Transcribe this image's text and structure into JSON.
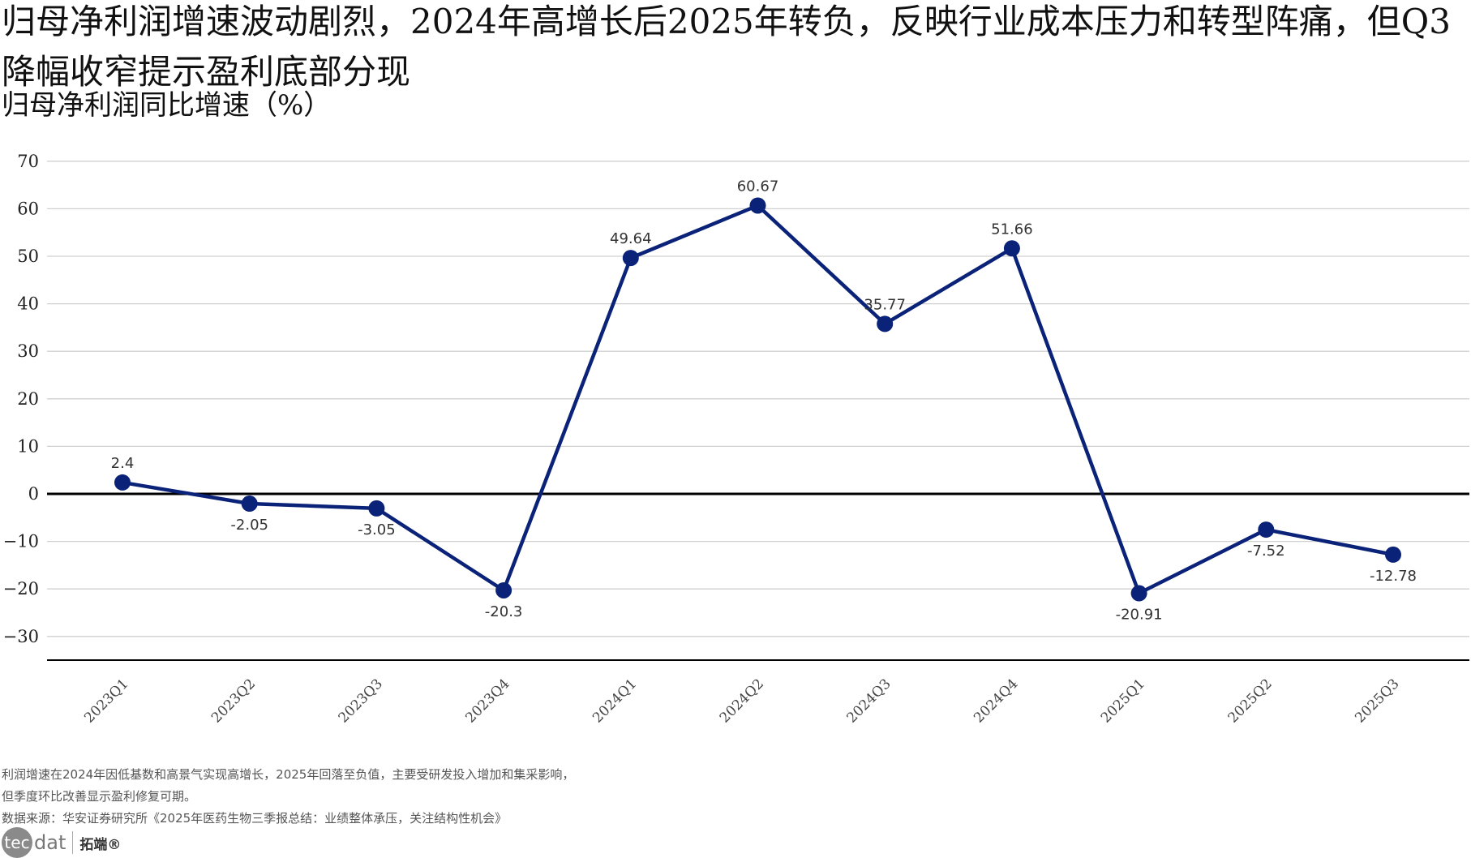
{
  "title": "归母净利润增速波动剧烈，2024年高增长后2025年转负，反映行业成本压力和转型阵痛，但Q3降幅收窄提示盈利底部分现",
  "footer": {
    "note_line1": "利润增速在2024年因低基数和高景气实现高增长，2025年回落至负值，主要受研发投入增加和集采影响，",
    "note_line2": "但季度环比改善显示盈利修复可期。",
    "source": "数据来源：华安证券研究所《2025年医药生物三季报总结：业绩整体承压，关注结构性机会》"
  },
  "logo": {
    "mark": "tec",
    "text": "dat",
    "cn": "拓端®"
  },
  "chart_data": {
    "type": "line",
    "title": "",
    "ylabel": "归母净利润同比增速（%）",
    "xlabel": "",
    "categories": [
      "2023Q1",
      "2023Q2",
      "2023Q3",
      "2023Q4",
      "2024Q1",
      "2024Q2",
      "2024Q3",
      "2024Q4",
      "2025Q1",
      "2025Q2",
      "2025Q3"
    ],
    "values": [
      2.4,
      -2.05,
      -3.05,
      -20.3,
      49.64,
      60.67,
      35.77,
      51.66,
      -20.91,
      -7.52,
      -12.78
    ],
    "data_labels": [
      "2.4",
      "-2.05",
      "-3.05",
      "-20.3",
      "49.64",
      "60.67",
      "35.77",
      "51.66",
      "-20.91",
      "-7.52",
      "-12.78"
    ],
    "yticks": [
      70,
      60,
      50,
      40,
      30,
      20,
      10,
      0,
      -10,
      -20,
      -30
    ],
    "ylim": [
      -35,
      70
    ],
    "grid": true,
    "zero_line": true,
    "line_color": "#0a2278"
  }
}
